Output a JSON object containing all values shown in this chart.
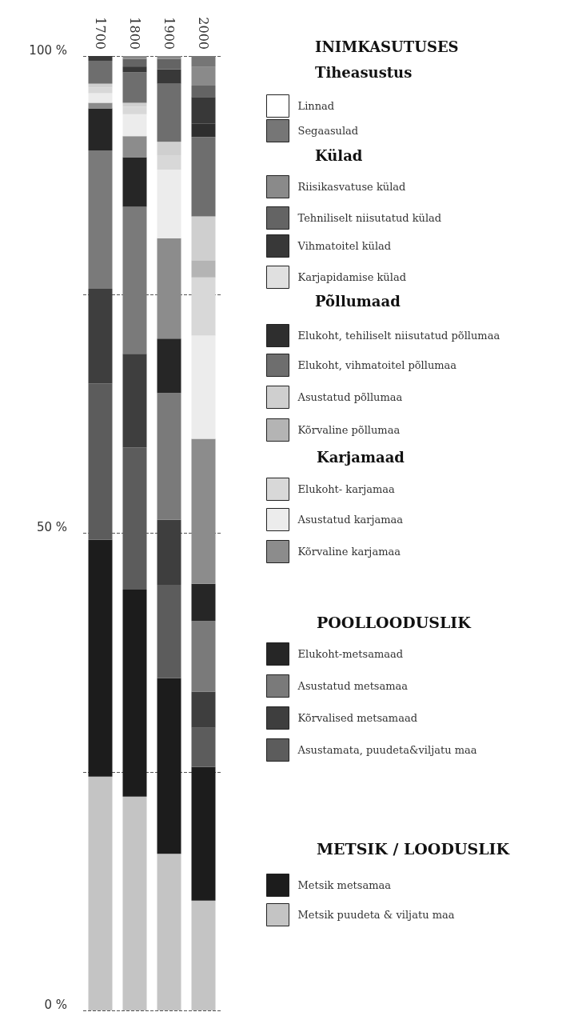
{
  "chart_data": {
    "type": "bar",
    "stacked": true,
    "categories": [
      "1700",
      "1800",
      "1900",
      "2000"
    ],
    "ylim": [
      0,
      100
    ],
    "yticks": [
      {
        "value": 0,
        "label": "0 %"
      },
      {
        "value": 25,
        "label": null
      },
      {
        "value": 50,
        "label": "50 %"
      },
      {
        "value": 75,
        "label": null
      },
      {
        "value": 100,
        "label": "100 %"
      }
    ],
    "grid": "y",
    "legend": "right",
    "annotations": [
      "INIMKASUTUSES",
      "Tiheasustus",
      "Külad",
      "Põllumaad",
      "Karjamaad",
      "POOLLOODUSLIK",
      "METSIK / LOODUSLIK"
    ],
    "series": [
      {
        "name": "Metsik puudeta & viljatu maa",
        "color": "#c4c4c4",
        "values": [
          24.5,
          22.4,
          16.4,
          11.5
        ]
      },
      {
        "name": "Metsik metsamaa",
        "color": "#1c1c1c",
        "values": [
          24.8,
          21.7,
          18.4,
          14.0
        ]
      },
      {
        "name": "Asustamata, puudeta&viljatu maa",
        "color": "#5c5c5c",
        "values": [
          16.4,
          14.9,
          9.8,
          4.1
        ]
      },
      {
        "name": "Kõrvalised metsamaad",
        "color": "#3e3e3e",
        "values": [
          9.9,
          9.8,
          6.8,
          3.8
        ]
      },
      {
        "name": "Asustatud metsamaa",
        "color": "#7a7a7a",
        "values": [
          14.5,
          15.4,
          13.3,
          7.4
        ]
      },
      {
        "name": "Elukoht-metsamaad",
        "color": "#262626",
        "values": [
          4.4,
          5.2,
          5.7,
          3.9
        ]
      },
      {
        "name": "Kõrvaline karjamaa",
        "color": "#8c8c8c",
        "values": [
          0.6,
          2.2,
          10.5,
          15.2
        ]
      },
      {
        "name": "Asustatud karjamaa",
        "color": "#ececec",
        "values": [
          1.0,
          2.3,
          7.2,
          10.8
        ]
      },
      {
        "name": "Elukoht- karjamaa",
        "color": "#d8d8d8",
        "values": [
          0.6,
          0.8,
          1.5,
          6.1
        ]
      },
      {
        "name": "Kõrvaline põllumaa",
        "color": "#b4b4b4",
        "values": [
          null,
          null,
          null,
          1.8
        ]
      },
      {
        "name": "Asustatud põllumaa",
        "color": "#cfcfcf",
        "values": [
          0.4,
          0.4,
          1.4,
          4.6
        ]
      },
      {
        "name": "Elukoht, vihmatoitel põllumaa",
        "color": "#6e6e6e",
        "values": [
          2.4,
          3.2,
          6.1,
          8.3
        ]
      },
      {
        "name": "Elukoht, tehiliselt niisutatud põllumaa",
        "color": "#2e2e2e",
        "values": [
          null,
          null,
          null,
          1.4
        ]
      },
      {
        "name": "Karjapidamise külad",
        "color": "#e0e0e0",
        "values": [
          null,
          null,
          null,
          null
        ]
      },
      {
        "name": "Vihmatoitel külad",
        "color": "#383838",
        "values": [
          0.5,
          0.6,
          1.5,
          2.8
        ]
      },
      {
        "name": "Tehniliselt niisutatud külad",
        "color": "#646464",
        "values": [
          null,
          0.8,
          1.1,
          1.2
        ]
      },
      {
        "name": "Riisikasvatuse külad",
        "color": "#8a8a8a",
        "values": [
          null,
          0.3,
          0.3,
          2.0
        ]
      },
      {
        "name": "Segaasulad",
        "color": "#767676",
        "values": [
          null,
          null,
          null,
          1.1
        ]
      },
      {
        "name": "Linnad",
        "color": "#ffffff",
        "values": [
          null,
          null,
          null,
          null
        ]
      }
    ]
  }
}
